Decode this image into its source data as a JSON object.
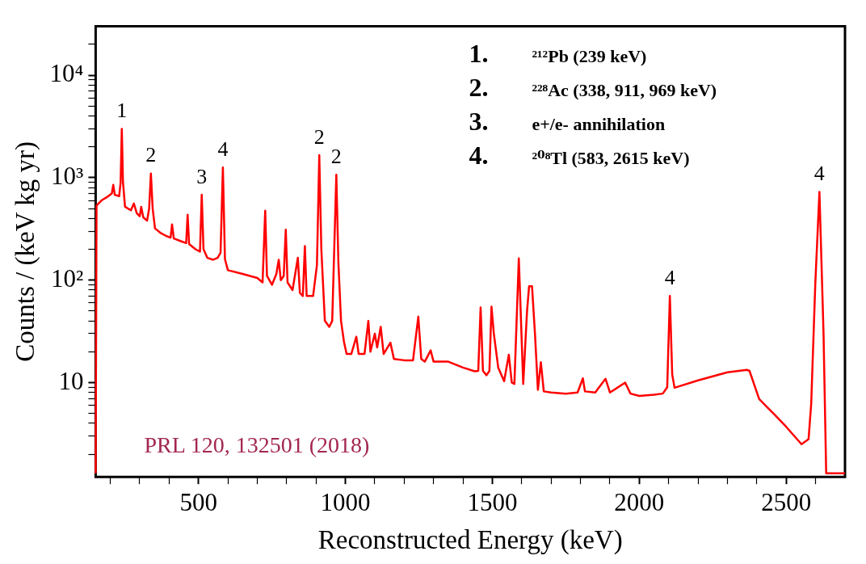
{
  "chart_data": {
    "type": "line",
    "xlabel": "Reconstructed Energy (keV)",
    "ylabel": "Counts / (keV kg yr)",
    "log": "y",
    "xlim": [
      150,
      2700
    ],
    "ylim": [
      1.2,
      30000
    ],
    "xticks": [
      {
        "value": 200,
        "label": null
      },
      {
        "value": 300,
        "label": null
      },
      {
        "value": 400,
        "label": null
      },
      500,
      {
        "value": 600,
        "label": null
      },
      {
        "value": 700,
        "label": null
      },
      {
        "value": 800,
        "label": null
      },
      {
        "value": 900,
        "label": null
      },
      1000,
      {
        "value": 1100,
        "label": null
      },
      {
        "value": 1200,
        "label": null
      },
      {
        "value": 1300,
        "label": null
      },
      {
        "value": 1400,
        "label": null
      },
      1500,
      {
        "value": 1600,
        "label": null
      },
      {
        "value": 1700,
        "label": null
      },
      {
        "value": 1800,
        "label": null
      },
      {
        "value": 1900,
        "label": null
      },
      2000,
      {
        "value": 2100,
        "label": null
      },
      {
        "value": 2200,
        "label": null
      },
      {
        "value": 2300,
        "label": null
      },
      {
        "value": 2400,
        "label": null
      },
      2500,
      {
        "value": 2600,
        "label": null
      }
    ],
    "yticks": [
      {
        "value": 2,
        "label": null
      },
      {
        "value": 3,
        "label": null
      },
      {
        "value": 4,
        "label": null
      },
      {
        "value": 5,
        "label": null
      },
      {
        "value": 6,
        "label": null
      },
      {
        "value": 7,
        "label": null
      },
      {
        "value": 8,
        "label": null
      },
      {
        "value": 9,
        "label": null
      },
      10,
      {
        "value": 20,
        "label": null
      },
      {
        "value": 30,
        "label": null
      },
      {
        "value": 40,
        "label": null
      },
      {
        "value": 50,
        "label": null
      },
      {
        "value": 60,
        "label": null
      },
      {
        "value": 70,
        "label": null
      },
      {
        "value": 80,
        "label": null
      },
      {
        "value": 90,
        "label": null
      },
      {
        "value": 100,
        "label": "10²"
      },
      {
        "value": 200,
        "label": null
      },
      {
        "value": 300,
        "label": null
      },
      {
        "value": 400,
        "label": null
      },
      {
        "value": 500,
        "label": null
      },
      {
        "value": 600,
        "label": null
      },
      {
        "value": 700,
        "label": null
      },
      {
        "value": 800,
        "label": null
      },
      {
        "value": 900,
        "label": null
      },
      {
        "value": 1000,
        "label": "10³"
      },
      {
        "value": 2000,
        "label": null
      },
      {
        "value": 3000,
        "label": null
      },
      {
        "value": 4000,
        "label": null
      },
      {
        "value": 5000,
        "label": null
      },
      {
        "value": 6000,
        "label": null
      },
      {
        "value": 7000,
        "label": null
      },
      {
        "value": 8000,
        "label": null
      },
      {
        "value": 9000,
        "label": null
      },
      {
        "value": 10000,
        "label": "10⁴"
      },
      {
        "value": 20000,
        "label": null
      }
    ],
    "marker": "none",
    "line_style": "solid",
    "series": [
      {
        "color": "#ff0000",
        "x": [
          150,
          153,
          170,
          190,
          205,
          210,
          215,
          230,
          235,
          239,
          243,
          250,
          270,
          280,
          290,
          300,
          305,
          312,
          325,
          332,
          338,
          344,
          352,
          370,
          390,
          405,
          410,
          416,
          440,
          458,
          463,
          468,
          490,
          505,
          511,
          517,
          530,
          550,
          565,
          575,
          583,
          590,
          600,
          650,
          700,
          718,
          727,
          733,
          750,
          765,
          773,
          780,
          790,
          797,
          803,
          820,
          838,
          845,
          855,
          862,
          868,
          890,
          903,
          911,
          918,
          930,
          945,
          955,
          969,
          976,
          985,
          995,
          1004,
          1020,
          1037,
          1045,
          1065,
          1078,
          1085,
          1100,
          1108,
          1120,
          1130,
          1153,
          1165,
          1200,
          1230,
          1248,
          1258,
          1270,
          1290,
          1300,
          1350,
          1400,
          1440,
          1452,
          1460,
          1468,
          1480,
          1490,
          1497,
          1505,
          1520,
          1540,
          1556,
          1566,
          1575,
          1590,
          1605,
          1618,
          1625,
          1635,
          1645,
          1655,
          1665,
          1675,
          1700,
          1750,
          1790,
          1808,
          1815,
          1850,
          1885,
          1900,
          1952,
          1970,
          2000,
          2050,
          2080,
          2095,
          2104,
          2112,
          2120,
          2200,
          2300,
          2366,
          2375,
          2408,
          2459,
          2500,
          2552,
          2576,
          2585,
          2599,
          2613,
          2627,
          2636,
          2700
        ],
        "values": [
          1.3,
          535,
          600,
          650,
          700,
          850,
          680,
          660,
          900,
          3000,
          900,
          520,
          480,
          560,
          450,
          420,
          520,
          410,
          380,
          500,
          1100,
          500,
          320,
          290,
          270,
          260,
          350,
          255,
          240,
          230,
          435,
          225,
          200,
          190,
          680,
          200,
          165,
          158,
          165,
          185,
          1260,
          160,
          125,
          115,
          105,
          95,
          475,
          110,
          90,
          115,
          158,
          100,
          110,
          310,
          95,
          80,
          165,
          75,
          70,
          215,
          70,
          70,
          140,
          1660,
          200,
          40,
          35,
          40,
          1070,
          150,
          40,
          25,
          19,
          19,
          28,
          19,
          19,
          40,
          20,
          30,
          22,
          35,
          19,
          24.5,
          17,
          16.5,
          16.5,
          44,
          17,
          16,
          20.6,
          16,
          16,
          14,
          12.9,
          13,
          54,
          13,
          11.8,
          13,
          55,
          30,
          14,
          10.3,
          18.7,
          10,
          9.7,
          163,
          9.7,
          50,
          87,
          87,
          30,
          8.5,
          15.8,
          8.2,
          8,
          7.8,
          8,
          11,
          8.2,
          8,
          10.9,
          8,
          10,
          7.8,
          7.4,
          7.6,
          7.8,
          9,
          70,
          12,
          8.9,
          10.5,
          12.6,
          13.3,
          13,
          6.9,
          4.9,
          3.7,
          2.5,
          2.8,
          6.2,
          93,
          725,
          30,
          1.3,
          1.3
        ]
      }
    ],
    "annotations": [
      {
        "text": "1",
        "x": 239,
        "y": 3000
      },
      {
        "text": "2",
        "x": 338,
        "y": 1100
      },
      {
        "text": "3",
        "x": 511,
        "y": 680
      },
      {
        "text": "4",
        "x": 583,
        "y": 1260
      },
      {
        "text": "2",
        "x": 911,
        "y": 1660
      },
      {
        "text": "2",
        "x": 969,
        "y": 1070
      },
      {
        "text": "4",
        "x": 2104,
        "y": 70
      },
      {
        "text": "4",
        "x": 2613,
        "y": 725
      },
      "1.",
      "²¹²Pb (239 keV)",
      "2.",
      "²²⁸Ac (338, 911, 969 keV)",
      "3.",
      "e+/e- annihilation",
      "4.",
      "²⁰⁸Tl (583, 2615 keV)",
      "PRL 120, 132501 (2018)"
    ]
  }
}
